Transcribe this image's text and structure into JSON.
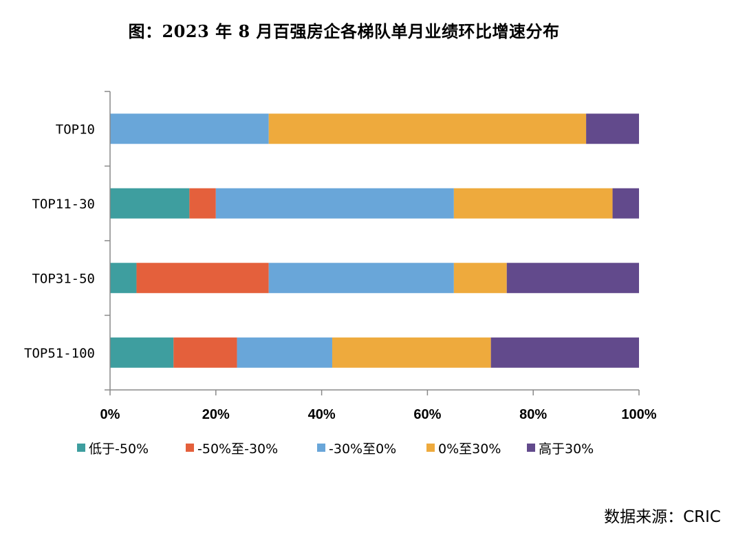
{
  "title": "图：2023 年 8 月百强房企各梯队单月业绩环比增速分布",
  "source": "数据来源：CRIC",
  "chart_data": {
    "type": "bar",
    "orientation": "horizontal",
    "stacked": true,
    "percent_stacked": true,
    "categories": [
      "TOP10",
      "TOP11-30",
      "TOP31-50",
      "TOP51-100"
    ],
    "series": [
      {
        "name": "低于-50%",
        "color": "#3e9e9f",
        "values": [
          0,
          15,
          5,
          12
        ]
      },
      {
        "name": "-50%至-30%",
        "color": "#e4603c",
        "values": [
          0,
          5,
          25,
          12
        ]
      },
      {
        "name": "-30%至0%",
        "color": "#69a6d9",
        "values": [
          30,
          45,
          35,
          18
        ]
      },
      {
        "name": "0%至30%",
        "color": "#eeaa3d",
        "values": [
          60,
          30,
          10,
          30
        ]
      },
      {
        "name": "高于30%",
        "color": "#624a8c",
        "values": [
          10,
          5,
          25,
          28
        ]
      }
    ],
    "xlim": [
      0,
      100
    ],
    "xticks": [
      "0%",
      "20%",
      "40%",
      "60%",
      "80%",
      "100%"
    ],
    "xlabel": "",
    "ylabel": "",
    "grid": false,
    "legend_position": "bottom"
  }
}
